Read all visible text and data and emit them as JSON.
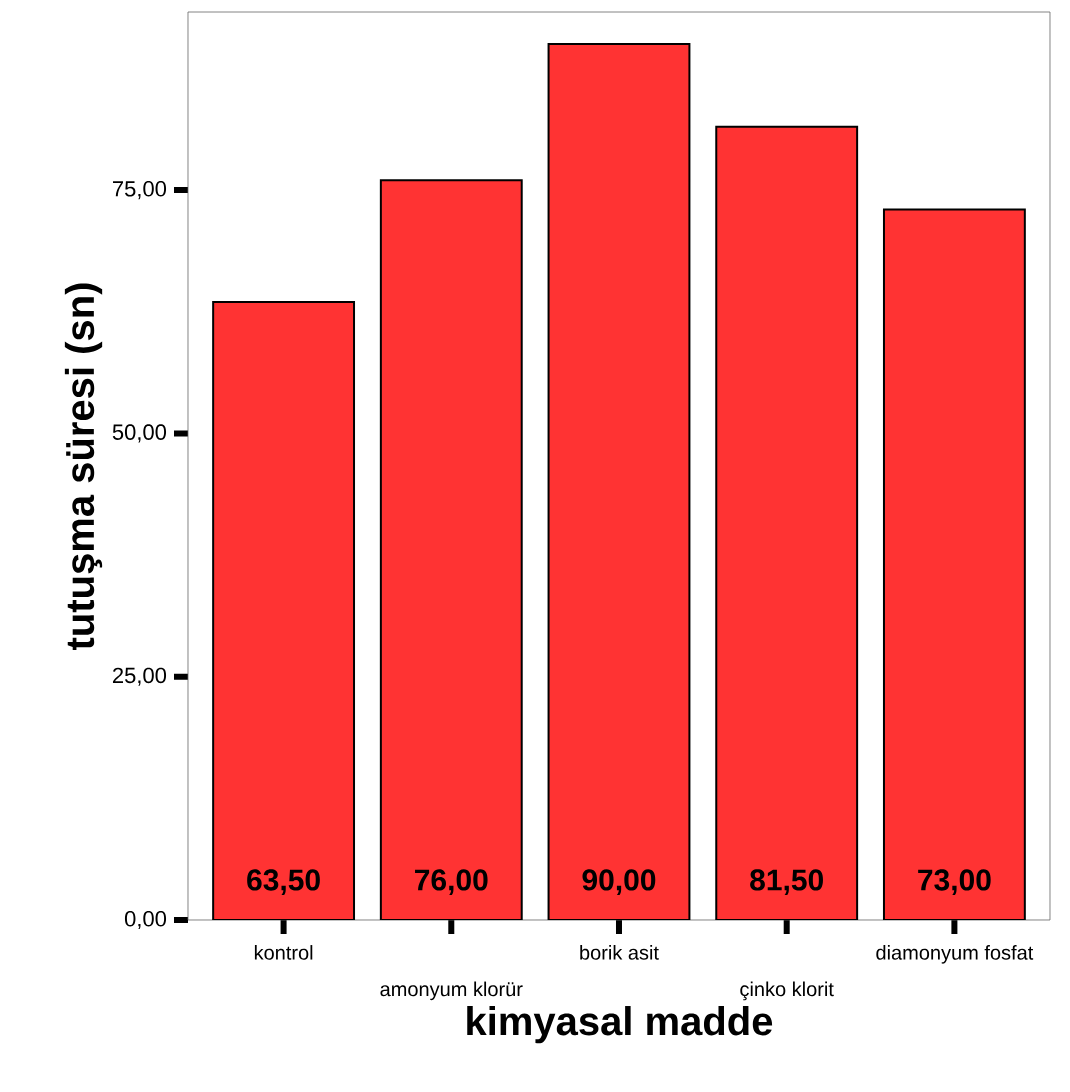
{
  "chart_data": {
    "type": "bar",
    "xlabel": "kimyasal madde",
    "ylabel": "tutuşma süresi (sn)",
    "categories": [
      "kontrol",
      "amonyum klorür",
      "borik asit",
      "çinko klorit",
      "diamonyum fosfat"
    ],
    "values": [
      63.5,
      76.0,
      90.0,
      81.5,
      73.0
    ],
    "value_labels": [
      "63,50",
      "76,00",
      "90,00",
      "81,50",
      "73,00"
    ],
    "color": "#ff3333",
    "ylim": [
      0,
      93.3
    ],
    "yticks": [
      {
        "value": 0,
        "label": "0,00"
      },
      {
        "value": 25,
        "label": "25,00"
      },
      {
        "value": 50,
        "label": "50,00"
      },
      {
        "value": 75,
        "label": "75,00"
      }
    ]
  }
}
